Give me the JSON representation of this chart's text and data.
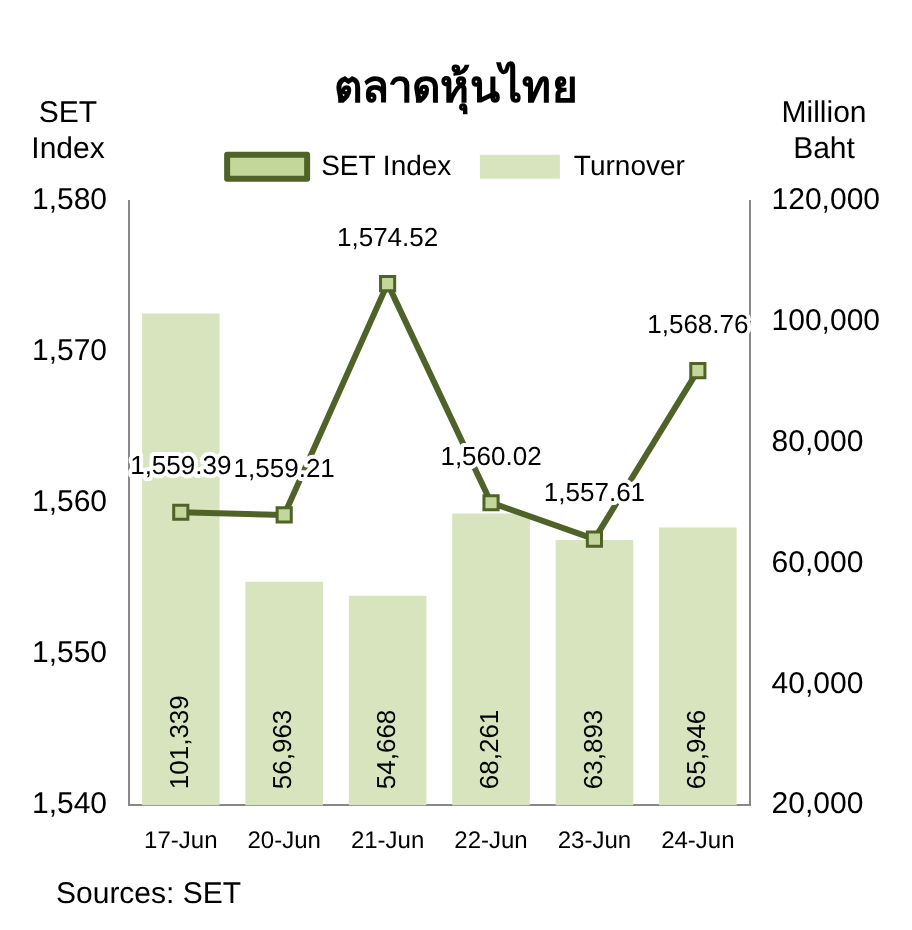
{
  "chart_data": {
    "type": "bar",
    "title": "ตลาดหุ้นไทย",
    "ylabel": "SET Index",
    "y2label": "Million Baht",
    "categories": [
      "17-Jun",
      "20-Jun",
      "21-Jun",
      "22-Jun",
      "23-Jun",
      "24-Jun"
    ],
    "series": [
      {
        "name": "Turnover",
        "axis": "y2",
        "color": "#d7e4bd",
        "values": [
          101339,
          56963,
          54668,
          68261,
          63893,
          65946
        ],
        "value_labels": [
          "101,339",
          "56,963",
          "54,668",
          "68,261",
          "63,893",
          "65,946"
        ]
      },
      {
        "name": "SET Index",
        "type": "line",
        "axis": "y",
        "color": "#4f6228",
        "marker": "square",
        "values": [
          1559.39,
          1559.21,
          1574.52,
          1560.02,
          1557.61,
          1568.76
        ],
        "value_labels": [
          "1,559.39",
          "1,559.21",
          "1,574.52",
          "1,560.02",
          "1,557.61",
          "1,568.76"
        ]
      }
    ],
    "ylim": [
      1540,
      1580
    ],
    "yticks": [
      {
        "value": 1540,
        "label": "1,540"
      },
      {
        "value": 1550,
        "label": "1,550"
      },
      {
        "value": 1560,
        "label": "1,560"
      },
      {
        "value": 1570,
        "label": "1,570"
      },
      {
        "value": 1580,
        "label": "1,580"
      }
    ],
    "y2lim": [
      20000,
      120000
    ],
    "y2ticks": [
      {
        "value": 20000,
        "label": "20,000"
      },
      {
        "value": 40000,
        "label": "40,000"
      },
      {
        "value": 60000,
        "label": "60,000"
      },
      {
        "value": 80000,
        "label": "80,000"
      },
      {
        "value": 100000,
        "label": "100,000"
      },
      {
        "value": 120000,
        "label": "120,000"
      }
    ],
    "grid": false,
    "legend": "top",
    "annotations": [
      "Sources: SET"
    ]
  }
}
